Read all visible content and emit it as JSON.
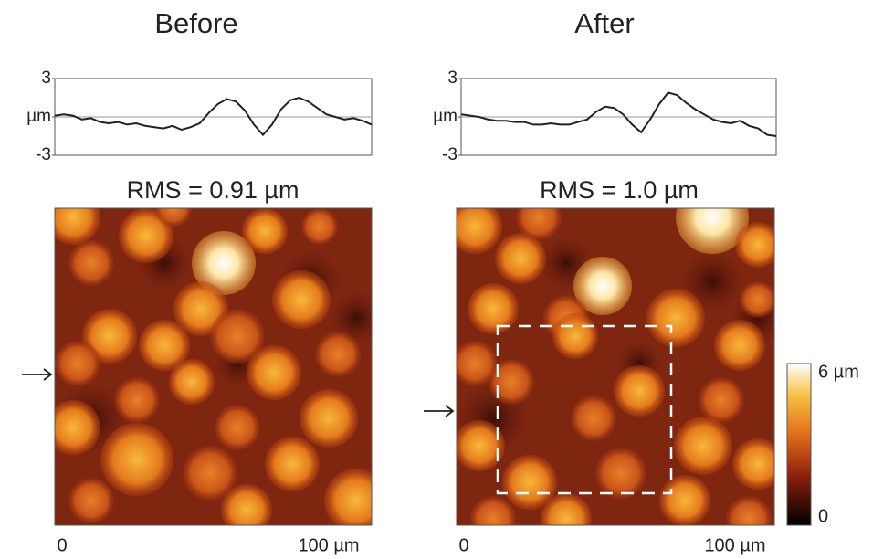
{
  "panels": [
    {
      "title": "Before",
      "rms": "RMS = 0.91 µm",
      "x_start": "0",
      "x_end": "100 µm",
      "profile": {
        "ylim": [
          -3,
          3
        ],
        "yticks": [
          -3,
          {
            "value": 0,
            "label": "µm"
          },
          3
        ],
        "values": [
          0.1,
          0.2,
          0.1,
          -0.2,
          -0.1,
          -0.4,
          -0.5,
          -0.4,
          -0.6,
          -0.5,
          -0.7,
          -0.8,
          -0.9,
          -0.7,
          -1.0,
          -0.8,
          -0.5,
          0.3,
          1.0,
          1.4,
          1.2,
          0.5,
          -0.6,
          -1.4,
          -0.6,
          0.6,
          1.3,
          1.5,
          1.2,
          0.7,
          0.2,
          0.0,
          -0.2,
          -0.1,
          -0.3,
          -0.6
        ]
      }
    },
    {
      "title": "After",
      "rms": "RMS = 1.0 µm",
      "x_start": "0",
      "x_end": "100 µm",
      "profile": {
        "ylim": [
          -3,
          3
        ],
        "yticks": [
          -3,
          {
            "value": 0,
            "label": "µm"
          },
          3
        ],
        "values": [
          0.2,
          0.1,
          0.0,
          -0.2,
          -0.3,
          -0.3,
          -0.4,
          -0.4,
          -0.6,
          -0.6,
          -0.5,
          -0.6,
          -0.6,
          -0.4,
          -0.2,
          0.4,
          0.8,
          0.7,
          0.2,
          -0.6,
          -1.2,
          -0.2,
          1.0,
          1.9,
          1.7,
          1.1,
          0.6,
          0.2,
          -0.2,
          -0.4,
          -0.5,
          -0.3,
          -0.7,
          -0.9,
          -1.4,
          -1.5
        ]
      }
    }
  ],
  "colorbar": {
    "max": "6 µm",
    "min": "0"
  }
}
